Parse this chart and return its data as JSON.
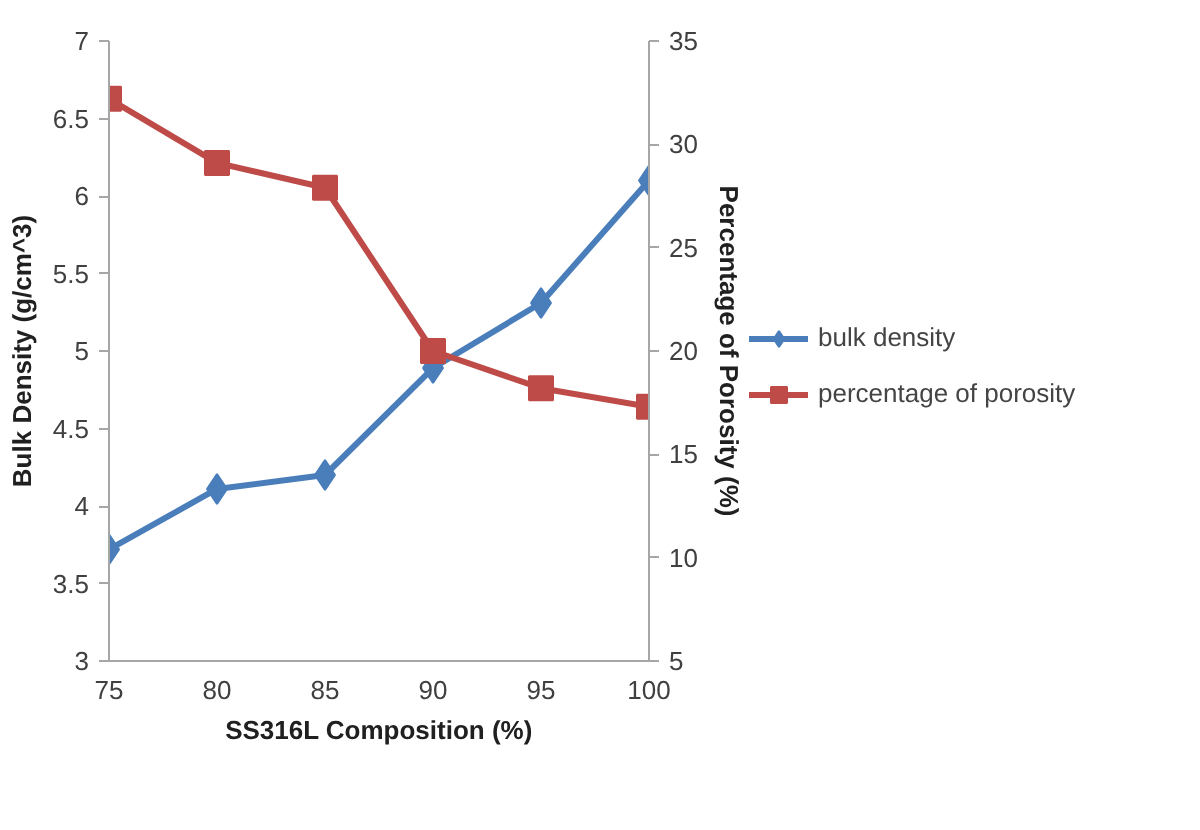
{
  "chart_data": {
    "type": "line",
    "xlabel": "SS316L Composition (%)",
    "ylabel": "Bulk Density (g/cm^3)",
    "y2label": "Percentage of Porosity (%)",
    "categories": [
      "75",
      "80",
      "85",
      "90",
      "95",
      "100"
    ],
    "series": [
      {
        "name": "bulk density",
        "color": "#4a7ebb",
        "marker": "diamond",
        "values": [
          3.72,
          4.11,
          4.2,
          4.89,
          5.31,
          6.1
        ]
      },
      {
        "name": "percentage of porosity",
        "color": "#be4b48",
        "marker": "square",
        "axis": "y2",
        "values": [
          32.2,
          29.1,
          27.9,
          20.0,
          18.2,
          17.3
        ]
      }
    ],
    "ylim": [
      3,
      7
    ],
    "yticks": [
      3,
      3.5,
      4,
      4.5,
      5,
      5.5,
      6,
      6.5,
      7
    ],
    "y2lim": [
      5,
      35
    ],
    "y2ticks": [
      5,
      10,
      15,
      20,
      25,
      30,
      35
    ],
    "grid": false,
    "legend": "right",
    "line_style": "solid"
  }
}
